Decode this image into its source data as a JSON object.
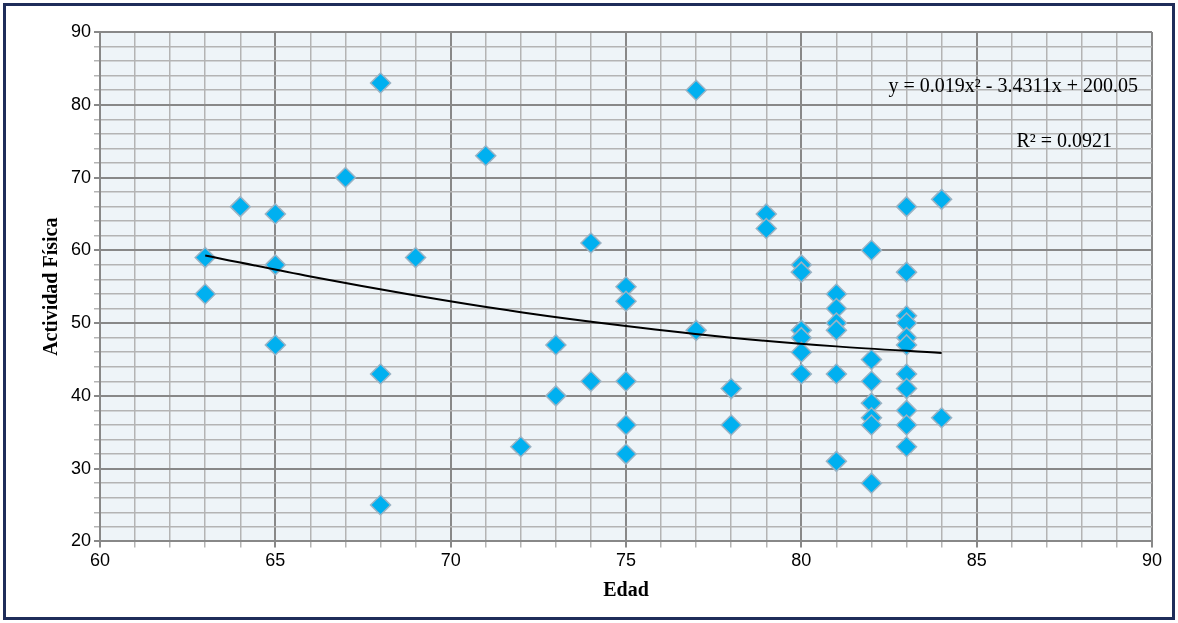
{
  "chart_data": {
    "type": "scatter",
    "xlabel": "Edad",
    "ylabel": "Actividad Física",
    "annotations": [
      "y = 0.019x² - 3.4311x + 200.05",
      "R² = 0.0921"
    ],
    "marker": "diamond",
    "grid": true,
    "xlim": [
      60,
      90
    ],
    "ylim": [
      20,
      90
    ],
    "xticks": [
      60,
      {
        "value": 61,
        "label": null
      },
      {
        "value": 62,
        "label": null
      },
      {
        "value": 63,
        "label": null
      },
      {
        "value": 64,
        "label": null
      },
      65,
      {
        "value": 66,
        "label": null
      },
      {
        "value": 67,
        "label": null
      },
      {
        "value": 68,
        "label": null
      },
      {
        "value": 69,
        "label": null
      },
      70,
      {
        "value": 71,
        "label": null
      },
      {
        "value": 72,
        "label": null
      },
      {
        "value": 73,
        "label": null
      },
      {
        "value": 74,
        "label": null
      },
      75,
      {
        "value": 76,
        "label": null
      },
      {
        "value": 77,
        "label": null
      },
      {
        "value": 78,
        "label": null
      },
      {
        "value": 79,
        "label": null
      },
      80,
      {
        "value": 81,
        "label": null
      },
      {
        "value": 82,
        "label": null
      },
      {
        "value": 83,
        "label": null
      },
      {
        "value": 84,
        "label": null
      },
      85,
      {
        "value": 86,
        "label": null
      },
      {
        "value": 87,
        "label": null
      },
      {
        "value": 88,
        "label": null
      },
      {
        "value": 89,
        "label": null
      },
      90
    ],
    "yticks": [
      20,
      {
        "value": 22,
        "label": null
      },
      {
        "value": 24,
        "label": null
      },
      {
        "value": 26,
        "label": null
      },
      {
        "value": 28,
        "label": null
      },
      30,
      {
        "value": 32,
        "label": null
      },
      {
        "value": 34,
        "label": null
      },
      {
        "value": 36,
        "label": null
      },
      {
        "value": 38,
        "label": null
      },
      40,
      {
        "value": 42,
        "label": null
      },
      {
        "value": 44,
        "label": null
      },
      {
        "value": 46,
        "label": null
      },
      {
        "value": 48,
        "label": null
      },
      50,
      {
        "value": 52,
        "label": null
      },
      {
        "value": 54,
        "label": null
      },
      {
        "value": 56,
        "label": null
      },
      {
        "value": 58,
        "label": null
      },
      60,
      {
        "value": 62,
        "label": null
      },
      {
        "value": 64,
        "label": null
      },
      {
        "value": 66,
        "label": null
      },
      {
        "value": 68,
        "label": null
      },
      70,
      {
        "value": 72,
        "label": null
      },
      {
        "value": 74,
        "label": null
      },
      {
        "value": 76,
        "label": null
      },
      {
        "value": 78,
        "label": null
      },
      80,
      {
        "value": 82,
        "label": null
      },
      {
        "value": 84,
        "label": null
      },
      {
        "value": 86,
        "label": null
      },
      {
        "value": 88,
        "label": null
      },
      90
    ],
    "series": [
      {
        "color": "#00b0f0",
        "x": [
          63,
          63,
          64,
          65,
          65,
          65,
          67,
          68,
          68,
          68,
          69,
          71,
          72,
          73,
          73,
          74,
          74,
          75,
          75,
          75,
          75,
          75,
          77,
          77,
          78,
          78,
          79,
          79,
          80,
          80,
          80,
          80,
          80,
          80,
          81,
          81,
          81,
          81,
          81,
          81,
          82,
          82,
          82,
          82,
          82,
          82,
          82,
          83,
          83,
          83,
          83,
          83,
          83,
          83,
          83,
          83,
          83,
          83,
          84,
          84
        ],
        "values": [
          59,
          54,
          66,
          65,
          58,
          47,
          70,
          83,
          43,
          25,
          59,
          73,
          33,
          47,
          40,
          61,
          42,
          55,
          53,
          42,
          36,
          32,
          82,
          49,
          41,
          36,
          65,
          63,
          58,
          57,
          49,
          48,
          46,
          43,
          54,
          52,
          50,
          49,
          43,
          31,
          60,
          45,
          42,
          39,
          37,
          36,
          28,
          66,
          57,
          51,
          50,
          48,
          47,
          43,
          41,
          38,
          36,
          33,
          67,
          37
        ]
      },
      {
        "type": "line",
        "color": "#000000",
        "marker": "none",
        "x": [
          63,
          66,
          69,
          72,
          75,
          78,
          81,
          84
        ],
        "values": [
          59.3,
          56.4,
          53.8,
          51.5,
          49.6,
          48.0,
          46.8,
          45.9
        ]
      }
    ]
  }
}
